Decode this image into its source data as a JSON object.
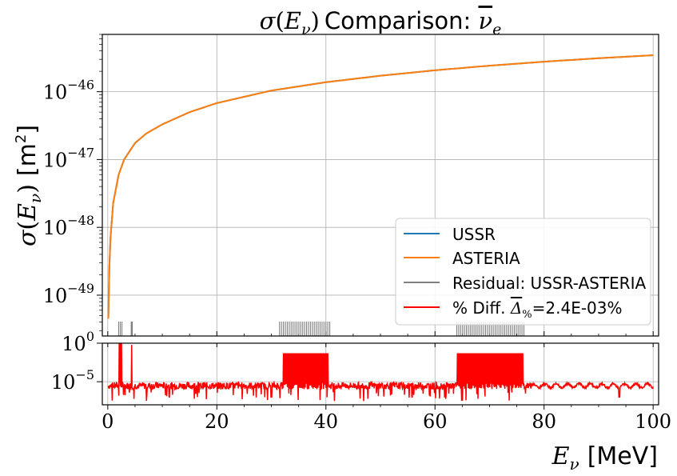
{
  "chart_data": [
    {
      "panel": "main",
      "type": "line",
      "title": "σ(E_ν) Comparison: ν̄_e",
      "ylabel": "σ(E_ν) [m²]",
      "yscale": "log",
      "xlim": [
        -1,
        101
      ],
      "ylim": [
        2.5e-50,
        7e-46
      ],
      "grid": true,
      "legend_position": "bottom-right",
      "y_ticks": [
        {
          "value": 1e-46,
          "label": "10",
          "exp": "−46"
        },
        {
          "value": 1e-47,
          "label": "10",
          "exp": "−47"
        },
        {
          "value": 1e-48,
          "label": "10",
          "exp": "−48"
        },
        {
          "value": 1e-49,
          "label": "10",
          "exp": "−49"
        }
      ],
      "series": [
        {
          "name": "USSR",
          "color": "#1f77b4",
          "x": [
            0.1,
            0.3,
            0.5,
            1,
            2,
            3,
            5,
            7,
            10,
            15,
            20,
            30,
            40,
            50,
            60,
            70,
            80,
            90,
            100
          ],
          "y": [
            4.5e-50,
            2.7e-49,
            7e-49,
            2.3e-48,
            6e-48,
            1e-47,
            1.75e-47,
            2.4e-47,
            3.3e-47,
            5e-47,
            6.8e-47,
            1.04e-46,
            1.38e-46,
            1.72e-46,
            2.07e-46,
            2.42e-46,
            2.77e-46,
            3.12e-46,
            3.45e-46
          ]
        },
        {
          "name": "ASTERIA",
          "color": "#ff7f0e",
          "x": [
            0.1,
            0.3,
            0.5,
            1,
            2,
            3,
            5,
            7,
            10,
            15,
            20,
            30,
            40,
            50,
            60,
            70,
            80,
            90,
            100
          ],
          "y": [
            4.5e-50,
            2.7e-49,
            7e-49,
            2.3e-48,
            6e-48,
            1e-47,
            1.75e-47,
            2.4e-47,
            3.3e-47,
            5e-47,
            6.8e-47,
            1.04e-46,
            1.38e-46,
            1.72e-46,
            2.07e-46,
            2.42e-46,
            2.77e-46,
            3.12e-46,
            3.45e-46
          ]
        },
        {
          "name": "Residual: USSR-ASTERIA",
          "color": "#808080",
          "style": "spikes",
          "spike_ranges": [
            [
              2,
              2.6
            ],
            [
              4.3,
              4.5
            ],
            [
              31.5,
              40.7
            ],
            [
              64,
              76.3
            ]
          ]
        },
        {
          "name": "% Diff. Δ̄%=2.4E-03%",
          "color": "#ff0000",
          "style": "legend-only"
        }
      ],
      "legend": [
        {
          "label": "USSR",
          "color": "#1f77b4"
        },
        {
          "label": "ASTERIA",
          "color": "#ff7f0e"
        },
        {
          "label": "Residual: USSR-ASTERIA",
          "color": "#808080"
        },
        {
          "label_prefix": "% Diff. ",
          "label_value": "=2.4E-03%",
          "color": "#ff0000"
        }
      ]
    },
    {
      "panel": "residual",
      "type": "line",
      "xlabel": "E_ν [MeV]",
      "yscale": "log",
      "xlim": [
        -1,
        101
      ],
      "ylim": [
        1e-08,
        1
      ],
      "grid": true,
      "y_ticks": [
        {
          "value": 1,
          "label": "10",
          "exp": "0"
        },
        {
          "value": 1e-05,
          "label": "10",
          "exp": "−5"
        }
      ],
      "x_ticks": [
        0,
        20,
        40,
        60,
        80,
        100
      ],
      "series": [
        {
          "name": "% Diff.",
          "color": "#ff0000",
          "baseline": 3e-06,
          "spikes_high": [
            [
              2,
              2.6,
              0.9
            ],
            [
              4.3,
              4.5,
              0.6
            ]
          ],
          "bands_high": [
            [
              32,
              40.5,
              0.05
            ],
            [
              64.1,
              76.3,
              0.05
            ]
          ],
          "note_dips": [
            [
              30,
              1e-07
            ],
            [
              55.8,
              1e-07
            ],
            [
              93.8,
              1e-07
            ]
          ]
        }
      ]
    }
  ]
}
